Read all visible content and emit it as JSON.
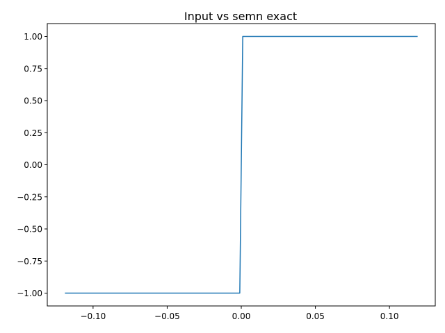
{
  "chart_data": {
    "type": "line",
    "title": "Input vs semn exact",
    "xlabel": "",
    "ylabel": "",
    "xlim": [
      -0.1309,
      0.1309
    ],
    "ylim": [
      -1.1,
      1.1
    ],
    "xticks": [
      -0.1,
      -0.05,
      0.0,
      0.05,
      0.1
    ],
    "xtick_labels": [
      "−0.10",
      "−0.05",
      "0.00",
      "0.05",
      "0.10"
    ],
    "yticks": [
      -1.0,
      -0.75,
      -0.5,
      -0.25,
      0.0,
      0.25,
      0.5,
      0.75,
      1.0
    ],
    "ytick_labels": [
      "−1.00",
      "−0.75",
      "−0.50",
      "−0.25",
      "0.00",
      "0.25",
      "0.50",
      "0.75",
      "1.00"
    ],
    "grid": false,
    "series": [
      {
        "color": "#1f77b4",
        "x": [
          -0.119,
          -0.001,
          0.001,
          0.119
        ],
        "y": [
          -1.0,
          -1.0,
          1.0,
          1.0
        ]
      }
    ]
  }
}
